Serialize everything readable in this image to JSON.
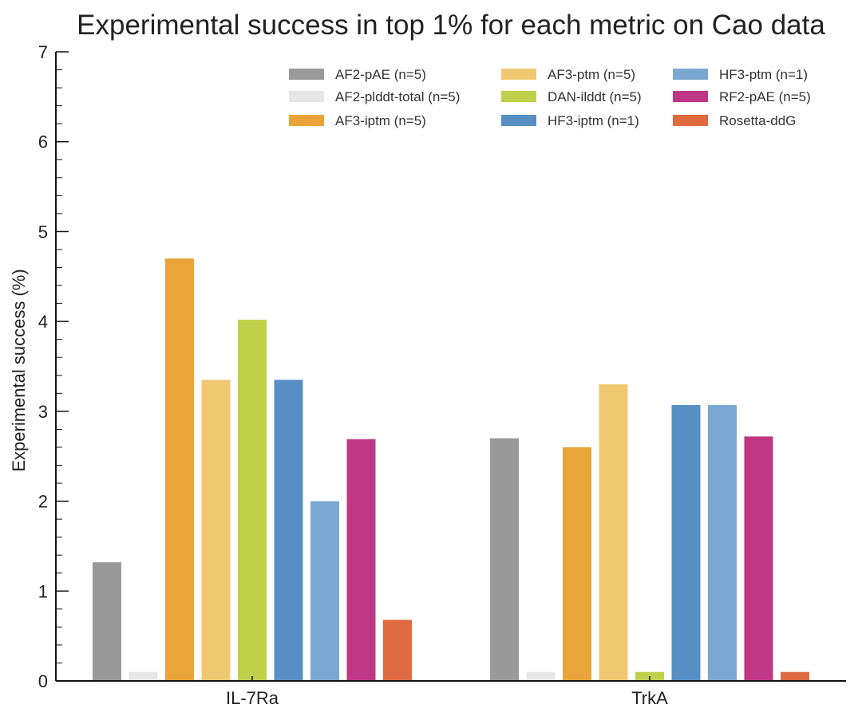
{
  "chart_data": {
    "type": "bar",
    "title": "Experimental success in top 1% for each metric on Cao data",
    "xlabel": "",
    "ylabel": "Experimental success (%)",
    "ylim": [
      0,
      7
    ],
    "yticks": [
      "0",
      "1",
      "2",
      "3",
      "4",
      "5",
      "6",
      "7"
    ],
    "categories": [
      "IL-7Ra",
      "TrkA"
    ],
    "grid": false,
    "legend_position": "top-right",
    "series": [
      {
        "name": "AF2-pAE (n=5)",
        "color": "#999999",
        "values": [
          1.32,
          2.7
        ]
      },
      {
        "name": "AF2-plddt-total (n=5)",
        "color": "#e6e6e6",
        "values": [
          0.1,
          0.1
        ]
      },
      {
        "name": "AF3-iptm (n=5)",
        "color": "#e9a53a",
        "values": [
          4.7,
          2.6
        ]
      },
      {
        "name": "AF3-ptm (n=5)",
        "color": "#f0c872",
        "values": [
          3.35,
          3.3
        ]
      },
      {
        "name": "DAN-ilddt (n=5)",
        "color": "#bfd14a",
        "values": [
          4.02,
          0.1
        ]
      },
      {
        "name": "HF3-iptm (n=1)",
        "color": "#578fc4",
        "values": [
          3.35,
          3.07
        ]
      },
      {
        "name": "HF3-ptm (n=1)",
        "color": "#7aa8d2",
        "values": [
          2.0,
          3.07
        ]
      },
      {
        "name": "RF2-pAE (n=5)",
        "color": "#be3886",
        "values": [
          2.69,
          2.72
        ]
      },
      {
        "name": "Rosetta-ddG",
        "color": "#e06a42",
        "values": [
          0.68,
          0.1
        ]
      }
    ]
  }
}
